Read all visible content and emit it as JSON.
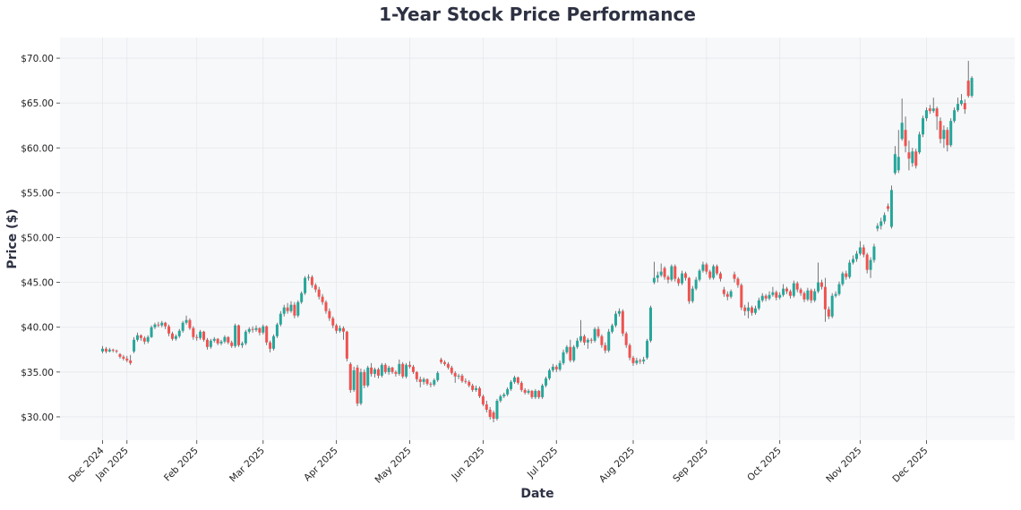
{
  "chart_data": {
    "type": "candlestick",
    "title": "1-Year Stock Price Performance",
    "xlabel": "Date",
    "ylabel": "Price ($)",
    "ylim": [
      27.4,
      72.3
    ],
    "grid": true,
    "y_ticks": [
      30,
      35,
      40,
      45,
      50,
      55,
      60,
      65,
      70
    ],
    "y_tick_labels": [
      "$30.00",
      "$35.00",
      "$40.00",
      "$45.00",
      "$50.00",
      "$55.00",
      "$60.00",
      "$65.00",
      "$70.00"
    ],
    "x_ticks": [
      {
        "label": "Dec 2024",
        "index": 0
      },
      {
        "label": "Jan 2025",
        "index": 7
      },
      {
        "label": "Feb 2025",
        "index": 27
      },
      {
        "label": "Mar 2025",
        "index": 46
      },
      {
        "label": "Apr 2025",
        "index": 67
      },
      {
        "label": "May 2025",
        "index": 88
      },
      {
        "label": "Jun 2025",
        "index": 109
      },
      {
        "label": "Jul 2025",
        "index": 130
      },
      {
        "label": "Aug 2025",
        "index": 152
      },
      {
        "label": "Sep 2025",
        "index": 173
      },
      {
        "label": "Oct 2025",
        "index": 194
      },
      {
        "label": "Nov 2025",
        "index": 217
      },
      {
        "label": "Dec 2025",
        "index": 236
      }
    ],
    "colors": {
      "up": "#26a69a",
      "down": "#ef5350",
      "wick": "#555555",
      "plot_bg": "#f7f8fa",
      "grid": "#e6e8ec"
    },
    "ohlc_fields": [
      "open",
      "high",
      "low",
      "close"
    ],
    "ohlc": [
      [
        37.3,
        37.9,
        37.1,
        37.6
      ],
      [
        37.6,
        37.8,
        37.1,
        37.3
      ],
      [
        37.3,
        37.7,
        37.2,
        37.5
      ],
      [
        37.5,
        37.6,
        37.2,
        37.4
      ],
      [
        37.4,
        37.5,
        37.1,
        37.3
      ],
      [
        37.0,
        37.1,
        36.5,
        36.7
      ],
      [
        36.7,
        36.9,
        36.3,
        36.5
      ],
      [
        36.5,
        36.8,
        36.1,
        36.3
      ],
      [
        36.3,
        36.9,
        35.8,
        36.0
      ],
      [
        37.3,
        38.9,
        37.1,
        38.6
      ],
      [
        38.6,
        39.4,
        38.4,
        39.1
      ],
      [
        39.1,
        39.2,
        38.5,
        38.8
      ],
      [
        38.8,
        39.0,
        38.1,
        38.4
      ],
      [
        38.4,
        39.1,
        38.2,
        38.9
      ],
      [
        38.9,
        40.2,
        38.8,
        40.0
      ],
      [
        40.0,
        40.5,
        39.8,
        40.3
      ],
      [
        40.3,
        40.6,
        40.0,
        40.2
      ],
      [
        40.2,
        40.7,
        40.0,
        40.5
      ],
      [
        40.5,
        40.6,
        39.8,
        40.1
      ],
      [
        40.1,
        40.3,
        39.0,
        39.3
      ],
      [
        39.3,
        39.5,
        38.5,
        38.7
      ],
      [
        38.7,
        39.2,
        38.5,
        39.0
      ],
      [
        39.0,
        39.8,
        38.8,
        39.6
      ],
      [
        39.6,
        40.7,
        39.4,
        40.5
      ],
      [
        40.5,
        41.3,
        40.3,
        40.8
      ],
      [
        40.8,
        41.0,
        39.7,
        39.9
      ],
      [
        39.9,
        40.1,
        38.6,
        38.9
      ],
      [
        38.9,
        39.2,
        38.5,
        38.8
      ],
      [
        38.8,
        39.7,
        38.6,
        39.5
      ],
      [
        39.5,
        39.6,
        38.4,
        38.6
      ],
      [
        38.6,
        38.8,
        37.5,
        37.8
      ],
      [
        37.8,
        38.7,
        37.6,
        38.5
      ],
      [
        38.5,
        38.9,
        38.3,
        38.7
      ],
      [
        38.7,
        38.8,
        38.0,
        38.2
      ],
      [
        38.2,
        38.6,
        38.0,
        38.4
      ],
      [
        38.4,
        39.1,
        38.2,
        38.9
      ],
      [
        38.9,
        39.0,
        38.1,
        38.3
      ],
      [
        38.3,
        38.5,
        37.7,
        37.9
      ],
      [
        37.9,
        40.4,
        37.7,
        40.2
      ],
      [
        40.2,
        40.3,
        37.8,
        38.0
      ],
      [
        38.0,
        38.4,
        37.7,
        38.2
      ],
      [
        38.2,
        39.7,
        38.0,
        39.5
      ],
      [
        39.5,
        40.0,
        39.3,
        39.8
      ],
      [
        39.8,
        40.1,
        39.4,
        39.7
      ],
      [
        39.7,
        40.2,
        39.5,
        39.9
      ],
      [
        39.9,
        40.0,
        39.1,
        39.4
      ],
      [
        39.4,
        40.3,
        39.2,
        40.1
      ],
      [
        40.1,
        40.2,
        38.0,
        38.3
      ],
      [
        38.3,
        38.5,
        37.2,
        37.6
      ],
      [
        37.6,
        39.2,
        37.4,
        39.0
      ],
      [
        39.0,
        40.5,
        38.8,
        40.3
      ],
      [
        40.3,
        41.8,
        40.1,
        41.5
      ],
      [
        41.5,
        42.5,
        41.2,
        42.2
      ],
      [
        42.2,
        42.7,
        41.5,
        41.8
      ],
      [
        41.8,
        42.9,
        41.6,
        42.5
      ],
      [
        42.5,
        42.8,
        41.0,
        41.3
      ],
      [
        41.3,
        43.0,
        41.1,
        42.8
      ],
      [
        42.8,
        44.0,
        42.6,
        43.8
      ],
      [
        43.8,
        45.7,
        43.6,
        45.5
      ],
      [
        45.5,
        45.9,
        45.2,
        45.6
      ],
      [
        45.6,
        45.8,
        44.4,
        44.7
      ],
      [
        44.7,
        44.9,
        43.9,
        44.2
      ],
      [
        44.2,
        44.5,
        43.1,
        43.4
      ],
      [
        43.4,
        43.7,
        42.5,
        42.8
      ],
      [
        42.8,
        43.0,
        41.5,
        41.8
      ],
      [
        41.8,
        42.1,
        40.7,
        41.0
      ],
      [
        41.0,
        41.2,
        39.9,
        40.2
      ],
      [
        40.2,
        40.4,
        39.3,
        39.6
      ],
      [
        39.6,
        40.2,
        39.4,
        39.9
      ],
      [
        39.9,
        40.1,
        38.6,
        39.5
      ],
      [
        39.5,
        39.6,
        36.2,
        36.5
      ],
      [
        35.9,
        36.1,
        32.7,
        33.0
      ],
      [
        33.0,
        35.6,
        32.8,
        35.2
      ],
      [
        35.5,
        35.8,
        31.2,
        31.5
      ],
      [
        31.5,
        35.4,
        31.3,
        35.0
      ],
      [
        35.0,
        35.3,
        33.2,
        33.5
      ],
      [
        33.5,
        35.7,
        33.3,
        35.5
      ],
      [
        35.5,
        36.0,
        34.5,
        34.8
      ],
      [
        34.8,
        35.5,
        34.4,
        35.3
      ],
      [
        35.3,
        35.5,
        34.3,
        34.6
      ],
      [
        34.6,
        36.0,
        34.4,
        35.8
      ],
      [
        35.8,
        36.0,
        34.8,
        35.0
      ],
      [
        35.0,
        35.7,
        34.7,
        35.5
      ],
      [
        35.5,
        35.6,
        34.8,
        35.0
      ],
      [
        35.0,
        35.2,
        34.5,
        34.8
      ],
      [
        34.8,
        36.4,
        34.6,
        35.9
      ],
      [
        35.9,
        36.1,
        34.3,
        34.5
      ],
      [
        34.5,
        36.0,
        34.3,
        35.8
      ],
      [
        35.8,
        36.2,
        35.4,
        35.6
      ],
      [
        35.6,
        35.8,
        34.8,
        35.0
      ],
      [
        35.0,
        35.1,
        33.9,
        34.2
      ],
      [
        34.2,
        34.5,
        33.3,
        33.9
      ],
      [
        33.9,
        34.4,
        33.6,
        34.2
      ],
      [
        34.2,
        34.3,
        33.5,
        33.7
      ],
      [
        33.7,
        33.9,
        33.3,
        33.6
      ],
      [
        33.6,
        34.3,
        33.4,
        34.1
      ],
      [
        34.1,
        35.1,
        33.9,
        34.9
      ],
      [
        36.4,
        36.6,
        35.9,
        36.1
      ],
      [
        36.1,
        36.3,
        35.7,
        35.9
      ],
      [
        35.9,
        36.1,
        35.3,
        35.5
      ],
      [
        35.5,
        35.7,
        34.7,
        34.9
      ],
      [
        34.9,
        35.1,
        33.8,
        34.5
      ],
      [
        34.5,
        34.8,
        34.2,
        34.6
      ],
      [
        34.6,
        34.8,
        33.8,
        34.0
      ],
      [
        34.0,
        34.3,
        33.7,
        33.9
      ],
      [
        33.9,
        34.1,
        33.3,
        33.5
      ],
      [
        33.5,
        33.7,
        32.8,
        33.0
      ],
      [
        33.0,
        33.5,
        32.8,
        33.2
      ],
      [
        33.2,
        33.4,
        32.1,
        32.3
      ],
      [
        32.3,
        32.5,
        31.2,
        31.4
      ],
      [
        31.4,
        31.8,
        30.5,
        30.8
      ],
      [
        30.8,
        31.1,
        29.7,
        30.0
      ],
      [
        30.5,
        30.7,
        29.4,
        29.8
      ],
      [
        29.8,
        32.0,
        29.6,
        31.8
      ],
      [
        31.8,
        32.5,
        31.6,
        32.3
      ],
      [
        32.3,
        32.7,
        32.1,
        32.5
      ],
      [
        32.5,
        33.3,
        32.3,
        33.1
      ],
      [
        33.1,
        34.1,
        32.9,
        33.9
      ],
      [
        33.9,
        34.6,
        33.7,
        34.4
      ],
      [
        34.4,
        34.5,
        33.6,
        33.8
      ],
      [
        33.8,
        34.0,
        32.8,
        33.0
      ],
      [
        33.0,
        33.2,
        32.5,
        32.7
      ],
      [
        32.7,
        33.1,
        32.5,
        32.9
      ],
      [
        32.9,
        33.0,
        32.0,
        32.2
      ],
      [
        32.2,
        33.1,
        32.0,
        32.9
      ],
      [
        32.9,
        33.0,
        32.0,
        32.2
      ],
      [
        32.2,
        33.7,
        32.0,
        33.5
      ],
      [
        33.5,
        34.5,
        33.3,
        34.3
      ],
      [
        34.3,
        35.4,
        34.1,
        35.2
      ],
      [
        35.2,
        35.9,
        35.0,
        35.6
      ],
      [
        35.6,
        35.8,
        35.0,
        35.3
      ],
      [
        35.3,
        36.3,
        35.1,
        36.0
      ],
      [
        36.0,
        37.5,
        35.8,
        37.2
      ],
      [
        37.2,
        38.0,
        37.0,
        37.8
      ],
      [
        37.8,
        38.6,
        36.1,
        36.3
      ],
      [
        36.3,
        38.0,
        36.1,
        37.8
      ],
      [
        37.8,
        38.8,
        37.6,
        38.5
      ],
      [
        38.5,
        40.8,
        38.3,
        39.0
      ],
      [
        39.0,
        39.2,
        38.0,
        38.3
      ],
      [
        38.3,
        38.8,
        37.6,
        38.6
      ],
      [
        38.6,
        38.8,
        38.2,
        38.5
      ],
      [
        38.5,
        40.0,
        38.3,
        39.8
      ],
      [
        39.8,
        40.1,
        38.8,
        39.0
      ],
      [
        39.0,
        39.2,
        37.7,
        38.0
      ],
      [
        38.0,
        38.3,
        37.1,
        37.4
      ],
      [
        37.4,
        39.8,
        37.2,
        39.5
      ],
      [
        39.5,
        40.4,
        39.3,
        40.2
      ],
      [
        40.2,
        41.8,
        40.0,
        41.5
      ],
      [
        41.5,
        42.1,
        41.2,
        41.8
      ],
      [
        41.8,
        42.0,
        39.0,
        39.3
      ],
      [
        39.3,
        39.5,
        37.7,
        38.0
      ],
      [
        38.0,
        38.2,
        36.3,
        36.6
      ],
      [
        36.6,
        36.8,
        35.7,
        36.0
      ],
      [
        36.0,
        36.6,
        35.8,
        36.3
      ],
      [
        36.3,
        36.5,
        35.9,
        36.2
      ],
      [
        36.2,
        36.7,
        35.9,
        36.4
      ],
      [
        36.6,
        38.7,
        36.4,
        38.5
      ],
      [
        38.5,
        42.4,
        38.3,
        42.2
      ],
      [
        45.0,
        47.3,
        44.8,
        45.5
      ],
      [
        45.5,
        46.2,
        45.0,
        45.8
      ],
      [
        45.8,
        47.1,
        45.6,
        46.2
      ],
      [
        46.6,
        46.8,
        45.3,
        45.6
      ],
      [
        45.6,
        45.8,
        44.9,
        45.3
      ],
      [
        45.3,
        47.0,
        45.1,
        46.8
      ],
      [
        46.8,
        47.0,
        45.1,
        45.4
      ],
      [
        45.4,
        45.6,
        44.6,
        44.9
      ],
      [
        44.9,
        46.3,
        44.7,
        46.0
      ],
      [
        46.0,
        46.2,
        45.2,
        45.5
      ],
      [
        45.5,
        45.6,
        42.6,
        42.9
      ],
      [
        42.9,
        44.6,
        42.7,
        44.3
      ],
      [
        44.3,
        45.6,
        44.1,
        45.3
      ],
      [
        45.3,
        46.5,
        45.1,
        46.3
      ],
      [
        46.3,
        47.3,
        46.1,
        47.0
      ],
      [
        47.0,
        47.2,
        45.9,
        46.2
      ],
      [
        46.2,
        46.4,
        45.3,
        45.5
      ],
      [
        45.5,
        47.0,
        45.3,
        46.8
      ],
      [
        46.8,
        47.0,
        45.8,
        46.0
      ],
      [
        46.0,
        46.2,
        45.1,
        45.4
      ],
      [
        44.2,
        44.5,
        43.4,
        43.7
      ],
      [
        43.7,
        44.0,
        43.0,
        43.4
      ],
      [
        43.4,
        44.2,
        43.2,
        44.0
      ],
      [
        45.9,
        46.2,
        45.0,
        45.4
      ],
      [
        45.4,
        45.6,
        44.4,
        44.7
      ],
      [
        44.7,
        44.9,
        41.9,
        42.2
      ],
      [
        42.2,
        42.5,
        41.3,
        41.8
      ],
      [
        41.8,
        42.8,
        41.0,
        42.2
      ],
      [
        42.2,
        42.4,
        41.3,
        41.6
      ],
      [
        41.6,
        42.4,
        41.4,
        42.1
      ],
      [
        42.1,
        43.3,
        41.9,
        43.0
      ],
      [
        43.0,
        43.8,
        42.8,
        43.5
      ],
      [
        43.5,
        43.7,
        42.9,
        43.2
      ],
      [
        43.2,
        44.0,
        43.0,
        43.6
      ],
      [
        43.6,
        44.5,
        43.4,
        43.9
      ],
      [
        43.9,
        44.1,
        43.0,
        43.3
      ],
      [
        43.3,
        43.9,
        43.1,
        43.6
      ],
      [
        43.6,
        44.8,
        43.4,
        44.3
      ],
      [
        44.3,
        44.5,
        43.7,
        44.0
      ],
      [
        44.0,
        44.2,
        43.2,
        43.5
      ],
      [
        43.5,
        45.2,
        43.3,
        44.9
      ],
      [
        44.9,
        45.1,
        43.9,
        44.2
      ],
      [
        44.2,
        44.4,
        43.5,
        43.8
      ],
      [
        43.8,
        44.0,
        42.8,
        43.1
      ],
      [
        43.1,
        44.4,
        42.9,
        44.1
      ],
      [
        44.1,
        44.3,
        42.7,
        43.0
      ],
      [
        43.0,
        44.3,
        42.8,
        44.0
      ],
      [
        44.0,
        47.2,
        43.8,
        45.0
      ],
      [
        45.0,
        45.3,
        44.2,
        44.5
      ],
      [
        44.5,
        45.5,
        40.6,
        42.0
      ],
      [
        42.0,
        42.3,
        40.9,
        41.2
      ],
      [
        41.2,
        43.8,
        41.0,
        43.5
      ],
      [
        43.5,
        44.0,
        43.3,
        43.7
      ],
      [
        43.7,
        45.1,
        43.5,
        44.8
      ],
      [
        44.8,
        46.2,
        44.6,
        46.0
      ],
      [
        46.0,
        46.3,
        45.3,
        45.6
      ],
      [
        45.6,
        47.5,
        45.4,
        47.2
      ],
      [
        47.2,
        48.0,
        47.0,
        47.6
      ],
      [
        47.6,
        48.5,
        47.3,
        48.2
      ],
      [
        48.2,
        49.6,
        48.0,
        48.9
      ],
      [
        48.9,
        49.2,
        47.8,
        48.1
      ],
      [
        48.1,
        48.3,
        46.0,
        46.4
      ],
      [
        46.4,
        47.8,
        45.5,
        47.5
      ],
      [
        47.5,
        49.3,
        47.2,
        49.0
      ],
      [
        51.0,
        51.6,
        50.7,
        51.3
      ],
      [
        51.3,
        52.2,
        50.9,
        51.8
      ],
      [
        51.8,
        52.8,
        51.5,
        52.5
      ],
      [
        53.5,
        53.8,
        52.9,
        53.2
      ],
      [
        51.2,
        55.8,
        51.0,
        55.3
      ],
      [
        57.2,
        60.2,
        57.0,
        59.3
      ],
      [
        57.5,
        62.0,
        57.2,
        59.0
      ],
      [
        61.0,
        65.5,
        60.8,
        62.8
      ],
      [
        62.0,
        63.5,
        59.5,
        60.2
      ],
      [
        59.5,
        60.8,
        57.5,
        58.8
      ],
      [
        58.3,
        60.0,
        57.9,
        59.6
      ],
      [
        59.6,
        59.9,
        57.7,
        58.0
      ],
      [
        59.5,
        61.8,
        59.3,
        61.5
      ],
      [
        61.5,
        63.6,
        61.2,
        63.3
      ],
      [
        63.3,
        64.5,
        63.0,
        64.2
      ],
      [
        64.4,
        64.8,
        63.8,
        64.1
      ],
      [
        64.1,
        65.6,
        63.9,
        64.4
      ],
      [
        64.4,
        64.6,
        62.0,
        63.5
      ],
      [
        63.0,
        63.4,
        60.5,
        61.0
      ],
      [
        61.0,
        62.5,
        60.0,
        62.0
      ],
      [
        62.0,
        62.3,
        59.6,
        60.3
      ],
      [
        60.3,
        63.3,
        60.1,
        63.0
      ],
      [
        63.0,
        64.5,
        62.8,
        64.2
      ],
      [
        64.2,
        65.6,
        64.0,
        64.9
      ],
      [
        64.9,
        66.0,
        64.7,
        65.3
      ],
      [
        65.0,
        65.4,
        63.8,
        64.3
      ],
      [
        67.5,
        69.7,
        65.6,
        65.8
      ],
      [
        65.8,
        68.0,
        65.6,
        67.8
      ]
    ]
  }
}
